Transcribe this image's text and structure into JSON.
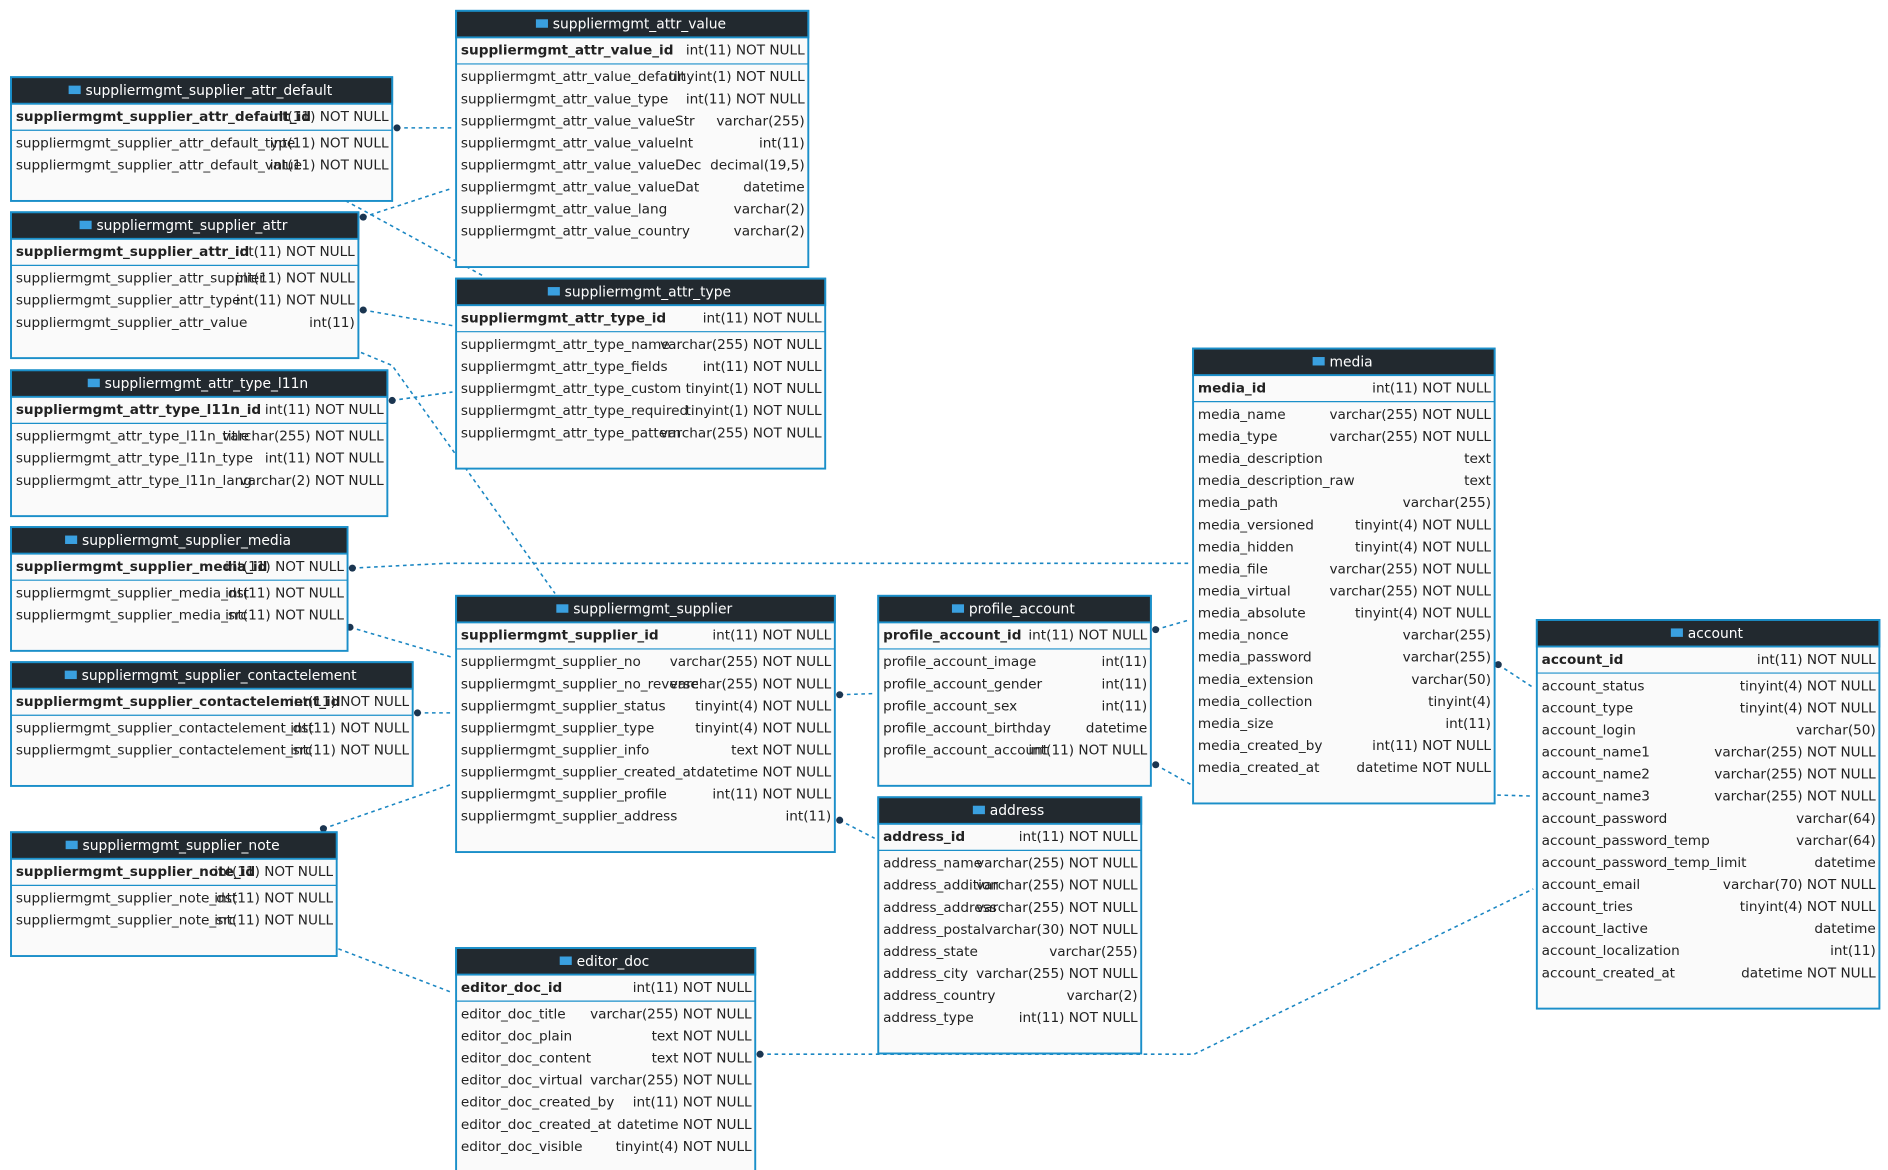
{
  "tables": [
    {
      "name": "suppliermgmt_supplier_attr_default",
      "columns": [
        [
          "suppliermgmt_supplier_attr_default_id",
          "int(11) NOT NULL"
        ],
        [
          "suppliermgmt_supplier_attr_default_type",
          "int(11) NOT NULL"
        ],
        [
          "suppliermgmt_supplier_attr_default_value",
          "int(11) NOT NULL"
        ]
      ]
    },
    {
      "name": "suppliermgmt_attr_value",
      "columns": [
        [
          "suppliermgmt_attr_value_id",
          "int(11) NOT NULL"
        ],
        [
          "suppliermgmt_attr_value_default",
          "tinyint(1) NOT NULL"
        ],
        [
          "suppliermgmt_attr_value_type",
          "int(11) NOT NULL"
        ],
        [
          "suppliermgmt_attr_value_valueStr",
          "varchar(255)"
        ],
        [
          "suppliermgmt_attr_value_valueInt",
          "int(11)"
        ],
        [
          "suppliermgmt_attr_value_valueDec",
          "decimal(19,5)"
        ],
        [
          "suppliermgmt_attr_value_valueDat",
          "datetime"
        ],
        [
          "suppliermgmt_attr_value_lang",
          "varchar(2)"
        ],
        [
          "suppliermgmt_attr_value_country",
          "varchar(2)"
        ]
      ]
    },
    {
      "name": "suppliermgmt_supplier_attr",
      "columns": [
        [
          "suppliermgmt_supplier_attr_id",
          "int(11) NOT NULL"
        ],
        [
          "suppliermgmt_supplier_attr_supplier",
          "int(11) NOT NULL"
        ],
        [
          "suppliermgmt_supplier_attr_type",
          "int(11) NOT NULL"
        ],
        [
          "suppliermgmt_supplier_attr_value",
          "int(11)"
        ]
      ]
    },
    {
      "name": "suppliermgmt_attr_type",
      "columns": [
        [
          "suppliermgmt_attr_type_id",
          "int(11) NOT NULL"
        ],
        [
          "suppliermgmt_attr_type_name",
          "varchar(255) NOT NULL"
        ],
        [
          "suppliermgmt_attr_type_fields",
          "int(11) NOT NULL"
        ],
        [
          "suppliermgmt_attr_type_custom",
          "tinyint(1) NOT NULL"
        ],
        [
          "suppliermgmt_attr_type_required",
          "tinyint(1) NOT NULL"
        ],
        [
          "suppliermgmt_attr_type_pattern",
          "varchar(255) NOT NULL"
        ]
      ]
    },
    {
      "name": "suppliermgmt_attr_type_l11n",
      "columns": [
        [
          "suppliermgmt_attr_type_l11n_id",
          "int(11) NOT NULL"
        ],
        [
          "suppliermgmt_attr_type_l11n_title",
          "varchar(255) NOT NULL"
        ],
        [
          "suppliermgmt_attr_type_l11n_type",
          "int(11) NOT NULL"
        ],
        [
          "suppliermgmt_attr_type_l11n_lang",
          "varchar(2) NOT NULL"
        ]
      ]
    },
    {
      "name": "suppliermgmt_supplier_media",
      "columns": [
        [
          "suppliermgmt_supplier_media_id",
          "int(11) NOT NULL"
        ],
        [
          "suppliermgmt_supplier_media_dst",
          "int(11) NOT NULL"
        ],
        [
          "suppliermgmt_supplier_media_src",
          "int(11) NOT NULL"
        ]
      ]
    },
    {
      "name": "suppliermgmt_supplier",
      "columns": [
        [
          "suppliermgmt_supplier_id",
          "int(11) NOT NULL"
        ],
        [
          "suppliermgmt_supplier_no",
          "varchar(255) NOT NULL"
        ],
        [
          "suppliermgmt_supplier_no_reverse",
          "varchar(255) NOT NULL"
        ],
        [
          "suppliermgmt_supplier_status",
          "tinyint(4) NOT NULL"
        ],
        [
          "suppliermgmt_supplier_type",
          "tinyint(4) NOT NULL"
        ],
        [
          "suppliermgmt_supplier_info",
          "text NOT NULL"
        ],
        [
          "suppliermgmt_supplier_created_at",
          "datetime NOT NULL"
        ],
        [
          "suppliermgmt_supplier_profile",
          "int(11) NOT NULL"
        ],
        [
          "suppliermgmt_supplier_address",
          "int(11)"
        ]
      ]
    },
    {
      "name": "profile_account",
      "columns": [
        [
          "profile_account_id",
          "int(11) NOT NULL"
        ],
        [
          "profile_account_image",
          "int(11)"
        ],
        [
          "profile_account_gender",
          "int(11)"
        ],
        [
          "profile_account_sex",
          "int(11)"
        ],
        [
          "profile_account_birthday",
          "datetime"
        ],
        [
          "profile_account_account",
          "int(11) NOT NULL"
        ]
      ]
    },
    {
      "name": "media",
      "columns": [
        [
          "media_id",
          "int(11) NOT NULL"
        ],
        [
          "media_name",
          "varchar(255) NOT NULL"
        ],
        [
          "media_type",
          "varchar(255) NOT NULL"
        ],
        [
          "media_description",
          "text"
        ],
        [
          "media_description_raw",
          "text"
        ],
        [
          "media_path",
          "varchar(255)"
        ],
        [
          "media_versioned",
          "tinyint(4) NOT NULL"
        ],
        [
          "media_hidden",
          "tinyint(4) NOT NULL"
        ],
        [
          "media_file",
          "varchar(255) NOT NULL"
        ],
        [
          "media_virtual",
          "varchar(255) NOT NULL"
        ],
        [
          "media_absolute",
          "tinyint(4) NOT NULL"
        ],
        [
          "media_nonce",
          "varchar(255)"
        ],
        [
          "media_password",
          "varchar(255)"
        ],
        [
          "media_extension",
          "varchar(50)"
        ],
        [
          "media_collection",
          "tinyint(4)"
        ],
        [
          "media_size",
          "int(11)"
        ],
        [
          "media_created_by",
          "int(11) NOT NULL"
        ],
        [
          "media_created_at",
          "datetime NOT NULL"
        ]
      ]
    },
    {
      "name": "account",
      "columns": [
        [
          "account_id",
          "int(11) NOT NULL"
        ],
        [
          "account_status",
          "tinyint(4) NOT NULL"
        ],
        [
          "account_type",
          "tinyint(4) NOT NULL"
        ],
        [
          "account_login",
          "varchar(50)"
        ],
        [
          "account_name1",
          "varchar(255) NOT NULL"
        ],
        [
          "account_name2",
          "varchar(255) NOT NULL"
        ],
        [
          "account_name3",
          "varchar(255) NOT NULL"
        ],
        [
          "account_password",
          "varchar(64)"
        ],
        [
          "account_password_temp",
          "varchar(64)"
        ],
        [
          "account_password_temp_limit",
          "datetime"
        ],
        [
          "account_email",
          "varchar(70) NOT NULL"
        ],
        [
          "account_tries",
          "tinyint(4) NOT NULL"
        ],
        [
          "account_lactive",
          "datetime"
        ],
        [
          "account_localization",
          "int(11)"
        ],
        [
          "account_created_at",
          "datetime NOT NULL"
        ]
      ]
    },
    {
      "name": "suppliermgmt_supplier_contactelement",
      "columns": [
        [
          "suppliermgmt_supplier_contactelement_id",
          "int(11) NOT NULL"
        ],
        [
          "suppliermgmt_supplier_contactelement_dst",
          "int(11) NOT NULL"
        ],
        [
          "suppliermgmt_supplier_contactelement_src",
          "int(11) NOT NULL"
        ]
      ]
    },
    {
      "name": "suppliermgmt_supplier_note",
      "columns": [
        [
          "suppliermgmt_supplier_note_id",
          "int(11) NOT NULL"
        ],
        [
          "suppliermgmt_supplier_note_dst",
          "int(11) NOT NULL"
        ],
        [
          "suppliermgmt_supplier_note_src",
          "int(11) NOT NULL"
        ]
      ]
    },
    {
      "name": "address",
      "columns": [
        [
          "address_id",
          "int(11) NOT NULL"
        ],
        [
          "address_name",
          "varchar(255) NOT NULL"
        ],
        [
          "address_addition",
          "varchar(255) NOT NULL"
        ],
        [
          "address_address",
          "varchar(255) NOT NULL"
        ],
        [
          "address_postal",
          "varchar(30) NOT NULL"
        ],
        [
          "address_state",
          "varchar(255)"
        ],
        [
          "address_city",
          "varchar(255) NOT NULL"
        ],
        [
          "address_country",
          "varchar(2)"
        ],
        [
          "address_type",
          "int(11) NOT NULL"
        ]
      ]
    },
    {
      "name": "editor_doc",
      "columns": [
        [
          "editor_doc_id",
          "int(11) NOT NULL"
        ],
        [
          "editor_doc_title",
          "varchar(255) NOT NULL"
        ],
        [
          "editor_doc_plain",
          "text NOT NULL"
        ],
        [
          "editor_doc_content",
          "text NOT NULL"
        ],
        [
          "editor_doc_virtual",
          "varchar(255) NOT NULL"
        ],
        [
          "editor_doc_created_by",
          "int(11) NOT NULL"
        ],
        [
          "editor_doc_created_at",
          "datetime NOT NULL"
        ],
        [
          "editor_doc_visible",
          "tinyint(4) NOT NULL"
        ]
      ]
    }
  ]
}
